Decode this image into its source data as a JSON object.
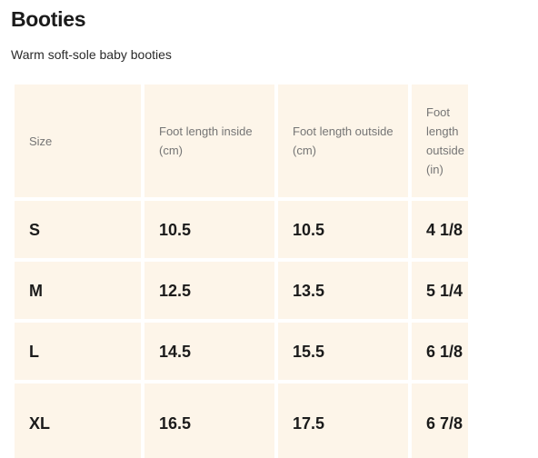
{
  "header": {
    "title": "Booties",
    "subtitle": "Warm soft-sole baby booties"
  },
  "table": {
    "columns": [
      "Size",
      "Foot length inside (cm)",
      "Foot length outside (cm)",
      "Foot length outside (in)"
    ],
    "rows": [
      [
        "S",
        "10.5",
        "10.5",
        "4 1/8"
      ],
      [
        "M",
        "12.5",
        "13.5",
        "5 1/4"
      ],
      [
        "L",
        "14.5",
        "15.5",
        "6 1/8"
      ],
      [
        "XL",
        "16.5",
        "17.5",
        "6 7/8"
      ]
    ]
  },
  "colors": {
    "cell_background": "#fdf5e9",
    "header_text": "#757575",
    "body_text": "#1b1b1b"
  }
}
